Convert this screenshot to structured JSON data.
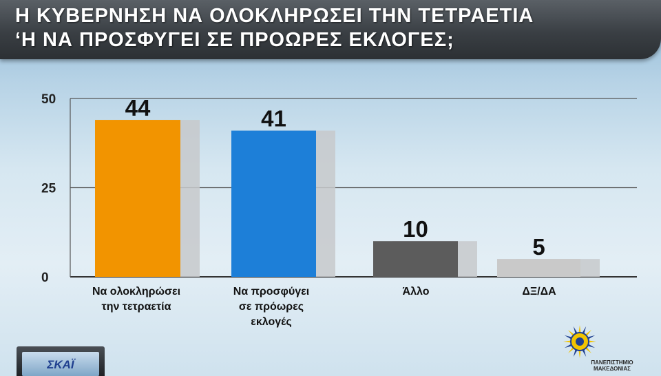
{
  "title": {
    "line1": "Η ΚΥΒΕΡΝΗΣΗ ΝΑ ΟΛΟΚΛΗΡΩΣΕΙ ΤΗΝ ΤΕΤΡΑΕΤΙΑ",
    "line2": "‘Η ΝΑ ΠΡΟΣΦΥΓΕΙ ΣΕ ΠΡΟΩΡΕΣ ΕΚΛΟΓΕΣ;"
  },
  "chart_data": {
    "type": "bar",
    "categories": [
      [
        "Να ολοκληρώσει",
        "την τετραετία"
      ],
      [
        "Να προσφύγει",
        "σε πρόωρες",
        "εκλογές"
      ],
      [
        "Άλλο"
      ],
      [
        "ΔΞ/ΔΑ"
      ]
    ],
    "values": [
      44,
      41,
      10,
      5
    ],
    "colors": [
      "#f29400",
      "#1d7fd8",
      "#5c5c5c",
      "#c9c9c9"
    ],
    "ylim": [
      0,
      50
    ],
    "yticks": [
      0,
      25,
      50
    ],
    "grid": true
  },
  "logos": {
    "left_text": "ΣΚΑΪ",
    "right_line1": "ΠΑΝΕΠΙΣΤΗΜΙΟ",
    "right_line2": "ΜΑΚΕΔΟΝΙΑΣ"
  }
}
